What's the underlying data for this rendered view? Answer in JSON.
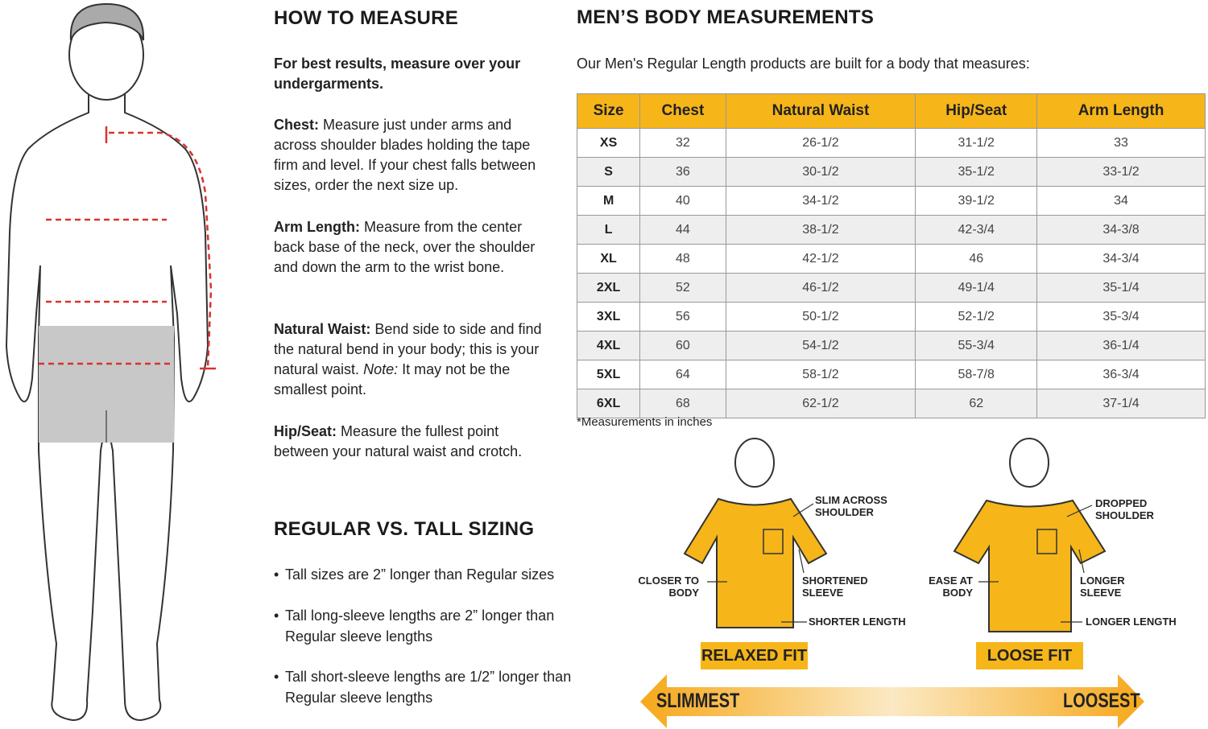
{
  "how_to_measure": {
    "title": "HOW TO MEASURE",
    "intro": "For best results, measure over your undergarments.",
    "items": [
      {
        "term": "Chest:",
        "text": "Measure just under arms and across shoulder blades holding the tape firm and level. If your chest falls between sizes, order the next size up."
      },
      {
        "term": "Arm Length:",
        "text": "Measure from the center back base of the neck, over the shoulder and down the arm to the wrist bone."
      },
      {
        "term": "Natural Waist:",
        "text": "Bend side to side and find the natural bend in your body; this is your natural waist.",
        "note_label": "Note:",
        "note": "It may not be the smallest point."
      },
      {
        "term": "Hip/Seat:",
        "text": "Measure the fullest point between your natural waist and crotch."
      }
    ]
  },
  "tall_sizing": {
    "title": "REGULAR VS. TALL SIZING",
    "bullets": [
      "Tall sizes are 2” longer than Regular sizes",
      "Tall long-sleeve lengths are 2” longer than Regular sleeve lengths",
      "Tall short-sleeve lengths are 1/2” longer than Regular sleeve lengths"
    ]
  },
  "measurements": {
    "title": "MEN’S BODY MEASUREMENTS",
    "intro": "Our Men's Regular Length products are built for a body that measures:",
    "table": {
      "headers": [
        "Size",
        "Chest",
        "Natural Waist",
        "Hip/Seat",
        "Arm Length"
      ],
      "rows": [
        [
          "XS",
          "32",
          "26-1/2",
          "31-1/2",
          "33"
        ],
        [
          "S",
          "36",
          "30-1/2",
          "35-1/2",
          "33-1/2"
        ],
        [
          "M",
          "40",
          "34-1/2",
          "39-1/2",
          "34"
        ],
        [
          "L",
          "44",
          "38-1/2",
          "42-3/4",
          "34-3/8"
        ],
        [
          "XL",
          "48",
          "42-1/2",
          "46",
          "34-3/4"
        ],
        [
          "2XL",
          "52",
          "46-1/2",
          "49-1/4",
          "35-1/4"
        ],
        [
          "3XL",
          "56",
          "50-1/2",
          "52-1/2",
          "35-3/4"
        ],
        [
          "4XL",
          "60",
          "54-1/2",
          "55-3/4",
          "36-1/4"
        ],
        [
          "5XL",
          "64",
          "58-1/2",
          "58-7/8",
          "36-3/4"
        ],
        [
          "6XL",
          "68",
          "62-1/2",
          "62",
          "37-1/4"
        ]
      ]
    },
    "footnote": "*Measurements in inches"
  },
  "fits": [
    {
      "label": "RELAXED FIT",
      "shoulder": "SLIM ACROSS SHOULDER",
      "body": "CLOSER TO BODY",
      "sleeve": "SHORTENED SLEEVE",
      "length": "SHORTER LENGTH"
    },
    {
      "label": "LOOSE FIT",
      "shoulder": "DROPPED SHOULDER",
      "body": "EASE AT BODY",
      "sleeve": "LONGER SLEEVE",
      "length": "LONGER LENGTH"
    }
  ],
  "scale": {
    "left": "SLIMMEST",
    "right": "LOOSEST"
  }
}
